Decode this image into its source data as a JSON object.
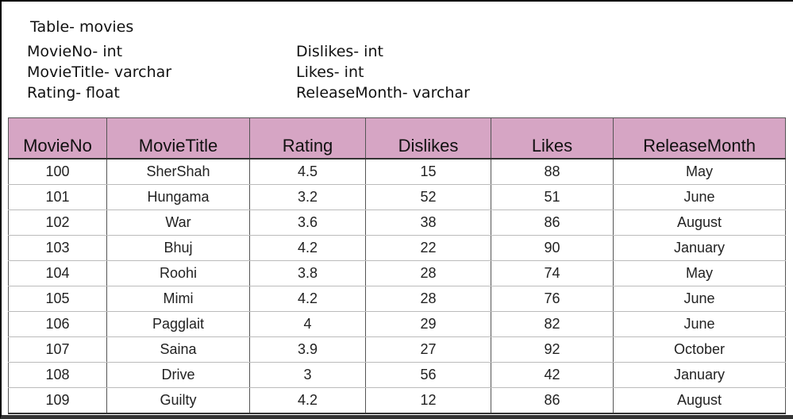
{
  "schema": {
    "title": "Table- movies",
    "left_fields": [
      "MovieNo- int",
      "MovieTitle- varchar",
      "Rating- float"
    ],
    "right_fields": [
      "Dislikes- int",
      "Likes- int",
      "ReleaseMonth- varchar"
    ]
  },
  "table": {
    "columns": [
      "MovieNo",
      "MovieTitle",
      "Rating",
      "Dislikes",
      "Likes",
      "ReleaseMonth"
    ],
    "rows": [
      [
        "100",
        "SherShah",
        "4.5",
        "15",
        "88",
        "May"
      ],
      [
        "101",
        "Hungama",
        "3.2",
        "52",
        "51",
        "June"
      ],
      [
        "102",
        "War",
        "3.6",
        "38",
        "86",
        "August"
      ],
      [
        "103",
        "Bhuj",
        "4.2",
        "22",
        "90",
        "January"
      ],
      [
        "104",
        "Roohi",
        "3.8",
        "28",
        "74",
        "May"
      ],
      [
        "105",
        "Mimi",
        "4.2",
        "28",
        "76",
        "June"
      ],
      [
        "106",
        "Pagglait",
        "4",
        "29",
        "82",
        "June"
      ],
      [
        "107",
        "Saina",
        "3.9",
        "27",
        "92",
        "October"
      ],
      [
        "108",
        "Drive",
        "3",
        "56",
        "42",
        "January"
      ],
      [
        "109",
        "Guilty",
        "4.2",
        "12",
        "86",
        "August"
      ]
    ]
  }
}
